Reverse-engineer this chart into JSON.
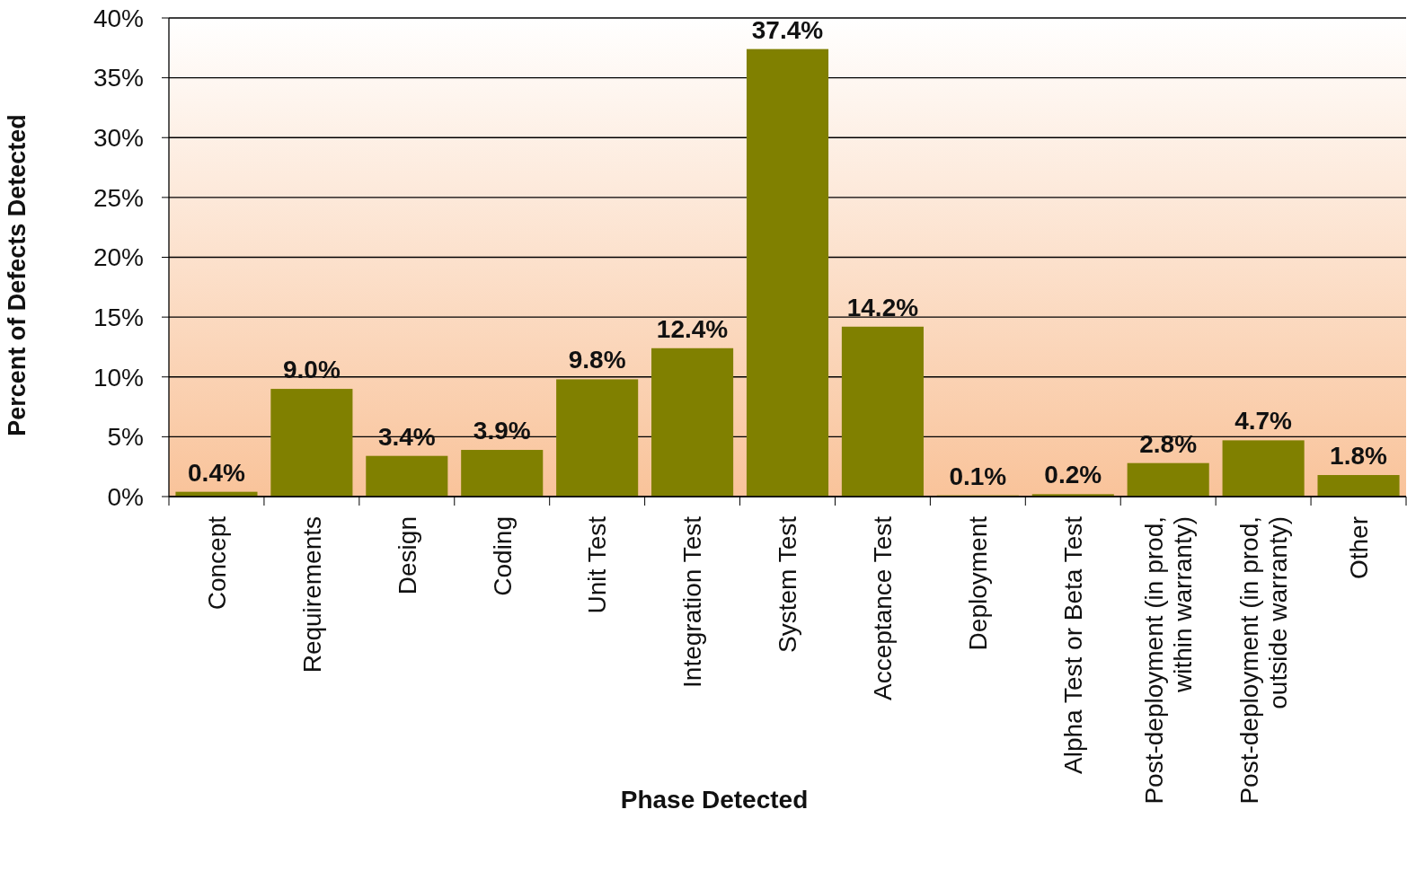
{
  "chart_data": {
    "type": "bar",
    "xlabel": "Phase Detected",
    "ylabel": "Percent of Defects Detected",
    "categories": [
      "Concept",
      "Requirements",
      "Design",
      "Coding",
      "Unit Test",
      "Integration Test",
      "System Test",
      "Acceptance Test",
      "Deployment",
      "Alpha Test or Beta Test",
      "Post-deployment (in prod, within warranty)",
      "Post-deployment (in prod, outside warranty)",
      "Other"
    ],
    "values": [
      0.4,
      9.0,
      3.4,
      3.9,
      9.8,
      12.4,
      37.4,
      14.2,
      0.1,
      0.2,
      2.8,
      4.7,
      1.8
    ],
    "value_labels": [
      "0.4%",
      "9.0%",
      "3.4%",
      "3.9%",
      "9.8%",
      "12.4%",
      "37.4%",
      "14.2%",
      "0.1%",
      "0.2%",
      "2.8%",
      "4.7%",
      "1.8%"
    ],
    "color": "#808000",
    "ylim": [
      0,
      40
    ],
    "yticks": [
      {
        "value": 0,
        "label": "0%"
      },
      {
        "value": 5,
        "label": "5%"
      },
      {
        "value": 10,
        "label": "10%"
      },
      {
        "value": 15,
        "label": "15%"
      },
      {
        "value": 20,
        "label": "20%"
      },
      {
        "value": 25,
        "label": "25%"
      },
      {
        "value": 30,
        "label": "30%"
      },
      {
        "value": 35,
        "label": "35%"
      },
      {
        "value": 40,
        "label": "40%"
      }
    ],
    "grid": "y"
  }
}
